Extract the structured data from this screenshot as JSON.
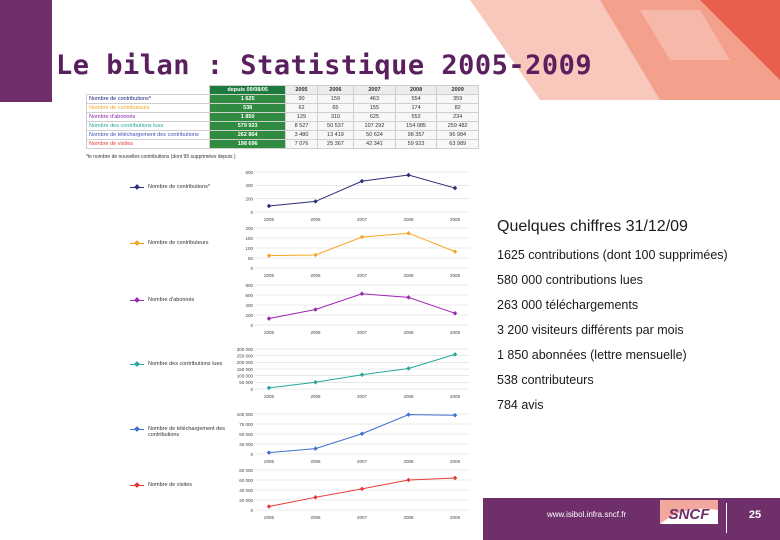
{
  "slide": {
    "title": "Le bilan : Statistique 2005-2009",
    "page_number": "25",
    "footer_url": "www.isibol.infra.sncf.fr",
    "logo_text": "SNCF"
  },
  "table": {
    "headers": [
      "",
      "depuis 09/08/05",
      "2005",
      "2006",
      "2007",
      "2008",
      "2009"
    ],
    "rows": [
      {
        "label": "Nombre de contributions*",
        "values": [
          "1 625",
          "90",
          "159",
          "463",
          "554",
          "359"
        ],
        "color": "#1a237e"
      },
      {
        "label": "Nombre de contributeurs",
        "values": [
          "538",
          "62",
          "65",
          "155",
          "174",
          "82"
        ],
        "color": "#f5a623"
      },
      {
        "label": "Nombre d'abonnés",
        "values": [
          "1 850",
          "129",
          "310",
          "625",
          "552",
          "234"
        ],
        "color": "#8e24aa"
      },
      {
        "label": "Nombre des contributions lues",
        "values": [
          "579 923",
          "8 527",
          "50 537",
          "107 292",
          "154 085",
          "259 482"
        ],
        "color": "#26a69a"
      },
      {
        "label": "Nombre de téléchargement des contributions",
        "values": [
          "262 864",
          "3 480",
          "13 419",
          "50 624",
          "98 357",
          "96 984"
        ],
        "color": "#3f51b5"
      },
      {
        "label": "Nombre de visites",
        "values": [
          "198 696",
          "7 076",
          "25 367",
          "42 341",
          "59 923",
          "63 989"
        ],
        "color": "#e53935"
      }
    ],
    "footnote": "*le nombre de nouvelles contributions (dont 95 supprimées depuis )"
  },
  "chart_data": [
    {
      "type": "line",
      "legend": "Nombre de contributions*",
      "color": "#2b2d7a",
      "categories": [
        "2005",
        "2006",
        "2007",
        "2008",
        "2009"
      ],
      "values": [
        90,
        159,
        463,
        554,
        359
      ],
      "ylim": [
        0,
        600
      ],
      "yticks": [
        "600",
        "400",
        "200",
        "0"
      ]
    },
    {
      "type": "line",
      "legend": "Nombre de contributeurs",
      "color": "#f5a623",
      "categories": [
        "2005",
        "2006",
        "2007",
        "2008",
        "2009"
      ],
      "values": [
        62,
        65,
        155,
        174,
        82
      ],
      "ylim": [
        0,
        200
      ],
      "yticks": [
        "200",
        "150",
        "100",
        "50",
        "0"
      ]
    },
    {
      "type": "line",
      "legend": "Nombre d'abonnés",
      "color": "#9c27b0",
      "categories": [
        "2005",
        "2006",
        "2007",
        "2008",
        "2009"
      ],
      "values": [
        129,
        310,
        625,
        552,
        234
      ],
      "ylim": [
        0,
        800
      ],
      "yticks": [
        "800",
        "600",
        "400",
        "200",
        "0"
      ]
    },
    {
      "type": "line",
      "legend": "Nombre des contributions lues",
      "color": "#26a69a",
      "categories": [
        "2005",
        "2006",
        "2007",
        "2008",
        "2009"
      ],
      "values": [
        8527,
        50537,
        107292,
        154085,
        259482
      ],
      "ylim": [
        0,
        300000
      ],
      "yticks": [
        "300 000",
        "250 000",
        "200 000",
        "150 000",
        "100 000",
        "50 000",
        "0"
      ]
    },
    {
      "type": "line",
      "legend": "Nombre de téléchargement des contributions",
      "color": "#3f6fd0",
      "categories": [
        "2005",
        "2006",
        "2007",
        "2008",
        "2009"
      ],
      "values": [
        3480,
        13419,
        50624,
        98357,
        96984
      ],
      "ylim": [
        0,
        100000
      ],
      "yticks": [
        "100 000",
        "75 000",
        "50 000",
        "25 000",
        "0"
      ]
    },
    {
      "type": "line",
      "legend": "Nombre de visites",
      "color": "#e53935",
      "categories": [
        "2005",
        "2006",
        "2007",
        "2008",
        "2009"
      ],
      "values": [
        7076,
        25367,
        42341,
        59923,
        63989
      ],
      "ylim": [
        0,
        80000
      ],
      "yticks": [
        "80 000",
        "60 000",
        "40 000",
        "20 000",
        "0"
      ]
    }
  ],
  "summary": {
    "heading": "Quelques chiffres 31/12/09",
    "items": [
      "1625 contributions (dont 100 supprimées)",
      "580 000 contributions lues",
      "263 000 téléchargements",
      "3 200 visiteurs différents par mois",
      "1 850 abonnées (lettre mensuelle)",
      "538 contributeurs",
      "784 avis"
    ]
  },
  "colors": {
    "brand_purple": "#6e2f6b",
    "title": "#5a1f5e",
    "deco_pink": "#f3a08d",
    "deco_red": "#e8604d"
  }
}
